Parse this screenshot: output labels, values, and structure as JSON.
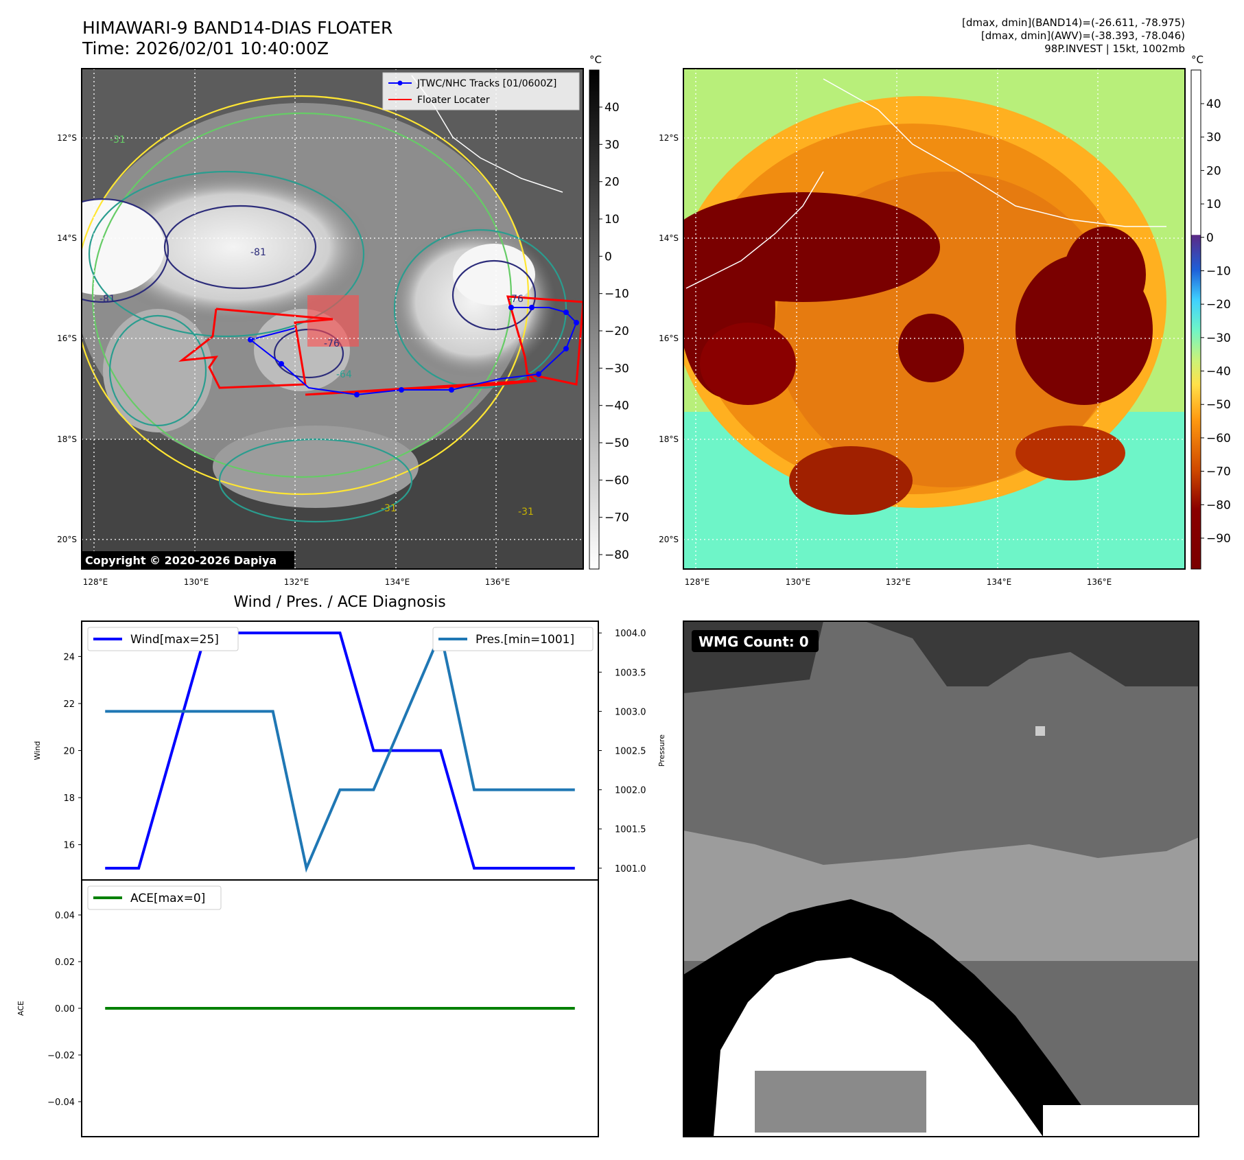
{
  "header": {
    "title_line1": "HIMAWARI-9 BAND14-DIAS FLOATER",
    "title_line2": "Time: 2026/02/01 10:40:00Z",
    "info_line1": "[dmax, dmin](BAND14)=(-26.611, -78.975)",
    "info_line2": "[dmax, dmin](AWV)=(-38.393, -78.046)",
    "info_line3": "98P.INVEST | 15kt, 1002mb"
  },
  "ir_map": {
    "lat_ticks": [
      "12°S",
      "14°S",
      "16°S",
      "18°S",
      "20°S"
    ],
    "lon_ticks": [
      "128°E",
      "130°E",
      "132°E",
      "134°E",
      "136°E"
    ],
    "legend": [
      "JTWC/NHC Tracks [01/0600Z]",
      "Floater Locater"
    ],
    "copyright": "Copyright © 2020-2026 Dapiya",
    "contour_labels": [
      "-81",
      "-81",
      "-76",
      "-76",
      "-64",
      "-31",
      "-31",
      "-31"
    ],
    "colorbar_unit": "°C",
    "colorbar_ticks": [
      "40",
      "30",
      "20",
      "10",
      "0",
      "−10",
      "−20",
      "−30",
      "−40",
      "−50",
      "−60",
      "−70",
      "−80"
    ],
    "colors": {
      "track": "#0000ff",
      "floater": "#ff0000",
      "contour_yellow": "#ffe633",
      "contour_green": "#66cc66",
      "contour_teal": "#2a9d8f",
      "contour_navy": "#2c2c7a"
    }
  },
  "awv_map": {
    "lat_ticks": [
      "12°S",
      "14°S",
      "16°S",
      "18°S",
      "20°S"
    ],
    "lon_ticks": [
      "128°E",
      "130°E",
      "132°E",
      "134°E",
      "136°E"
    ],
    "colorbar_unit": "°C",
    "colorbar_ticks": [
      "40",
      "30",
      "20",
      "10",
      "0",
      "−10",
      "−20",
      "−30",
      "−40",
      "−50",
      "−60",
      "−70",
      "−80",
      "−90"
    ]
  },
  "chart_data": [
    {
      "type": "line",
      "title": "Wind / Pres. / ACE Diagnosis",
      "x": [
        0,
        1,
        2,
        3,
        4,
        5,
        6,
        7,
        8,
        9,
        10,
        11,
        12,
        13,
        14
      ],
      "series": [
        {
          "name": "Wind[max=25]",
          "axis": "left",
          "color": "#0000ff",
          "values": [
            15,
            15,
            20,
            25,
            25,
            25,
            25,
            25,
            20,
            20,
            20,
            15,
            15,
            15,
            15
          ]
        },
        {
          "name": "Pres.[min=1001]",
          "axis": "right",
          "color": "#1f77b4",
          "values": [
            1003,
            1003,
            1003,
            1003,
            1003,
            1003,
            1001,
            1002,
            1002,
            1003,
            1004,
            1002,
            1002,
            1002,
            1002
          ]
        }
      ],
      "ylabel": "Wind",
      "ylabel_right": "Pressure",
      "yticks": [
        "16",
        "18",
        "20",
        "22",
        "24"
      ],
      "yticks_right": [
        "1001.0",
        "1001.5",
        "1002.0",
        "1002.5",
        "1003.0",
        "1003.5",
        "1004.0"
      ],
      "ylim": [
        14.5,
        25.5
      ],
      "ylim_right": [
        1000.85,
        1004.15
      ]
    },
    {
      "type": "line",
      "x": [
        0,
        1,
        2,
        3,
        4,
        5,
        6,
        7,
        8,
        9,
        10,
        11,
        12,
        13,
        14
      ],
      "series": [
        {
          "name": "ACE[max=0]",
          "color": "#008000",
          "values": [
            0,
            0,
            0,
            0,
            0,
            0,
            0,
            0,
            0,
            0,
            0,
            0,
            0,
            0,
            0
          ]
        }
      ],
      "ylabel": "ACE",
      "yticks": [
        "0.04",
        "0.02",
        "0.00",
        "−0.02",
        "−0.04"
      ],
      "ylim": [
        -0.055,
        0.055
      ]
    }
  ],
  "wmg": {
    "label": "WMG Count: 0"
  }
}
